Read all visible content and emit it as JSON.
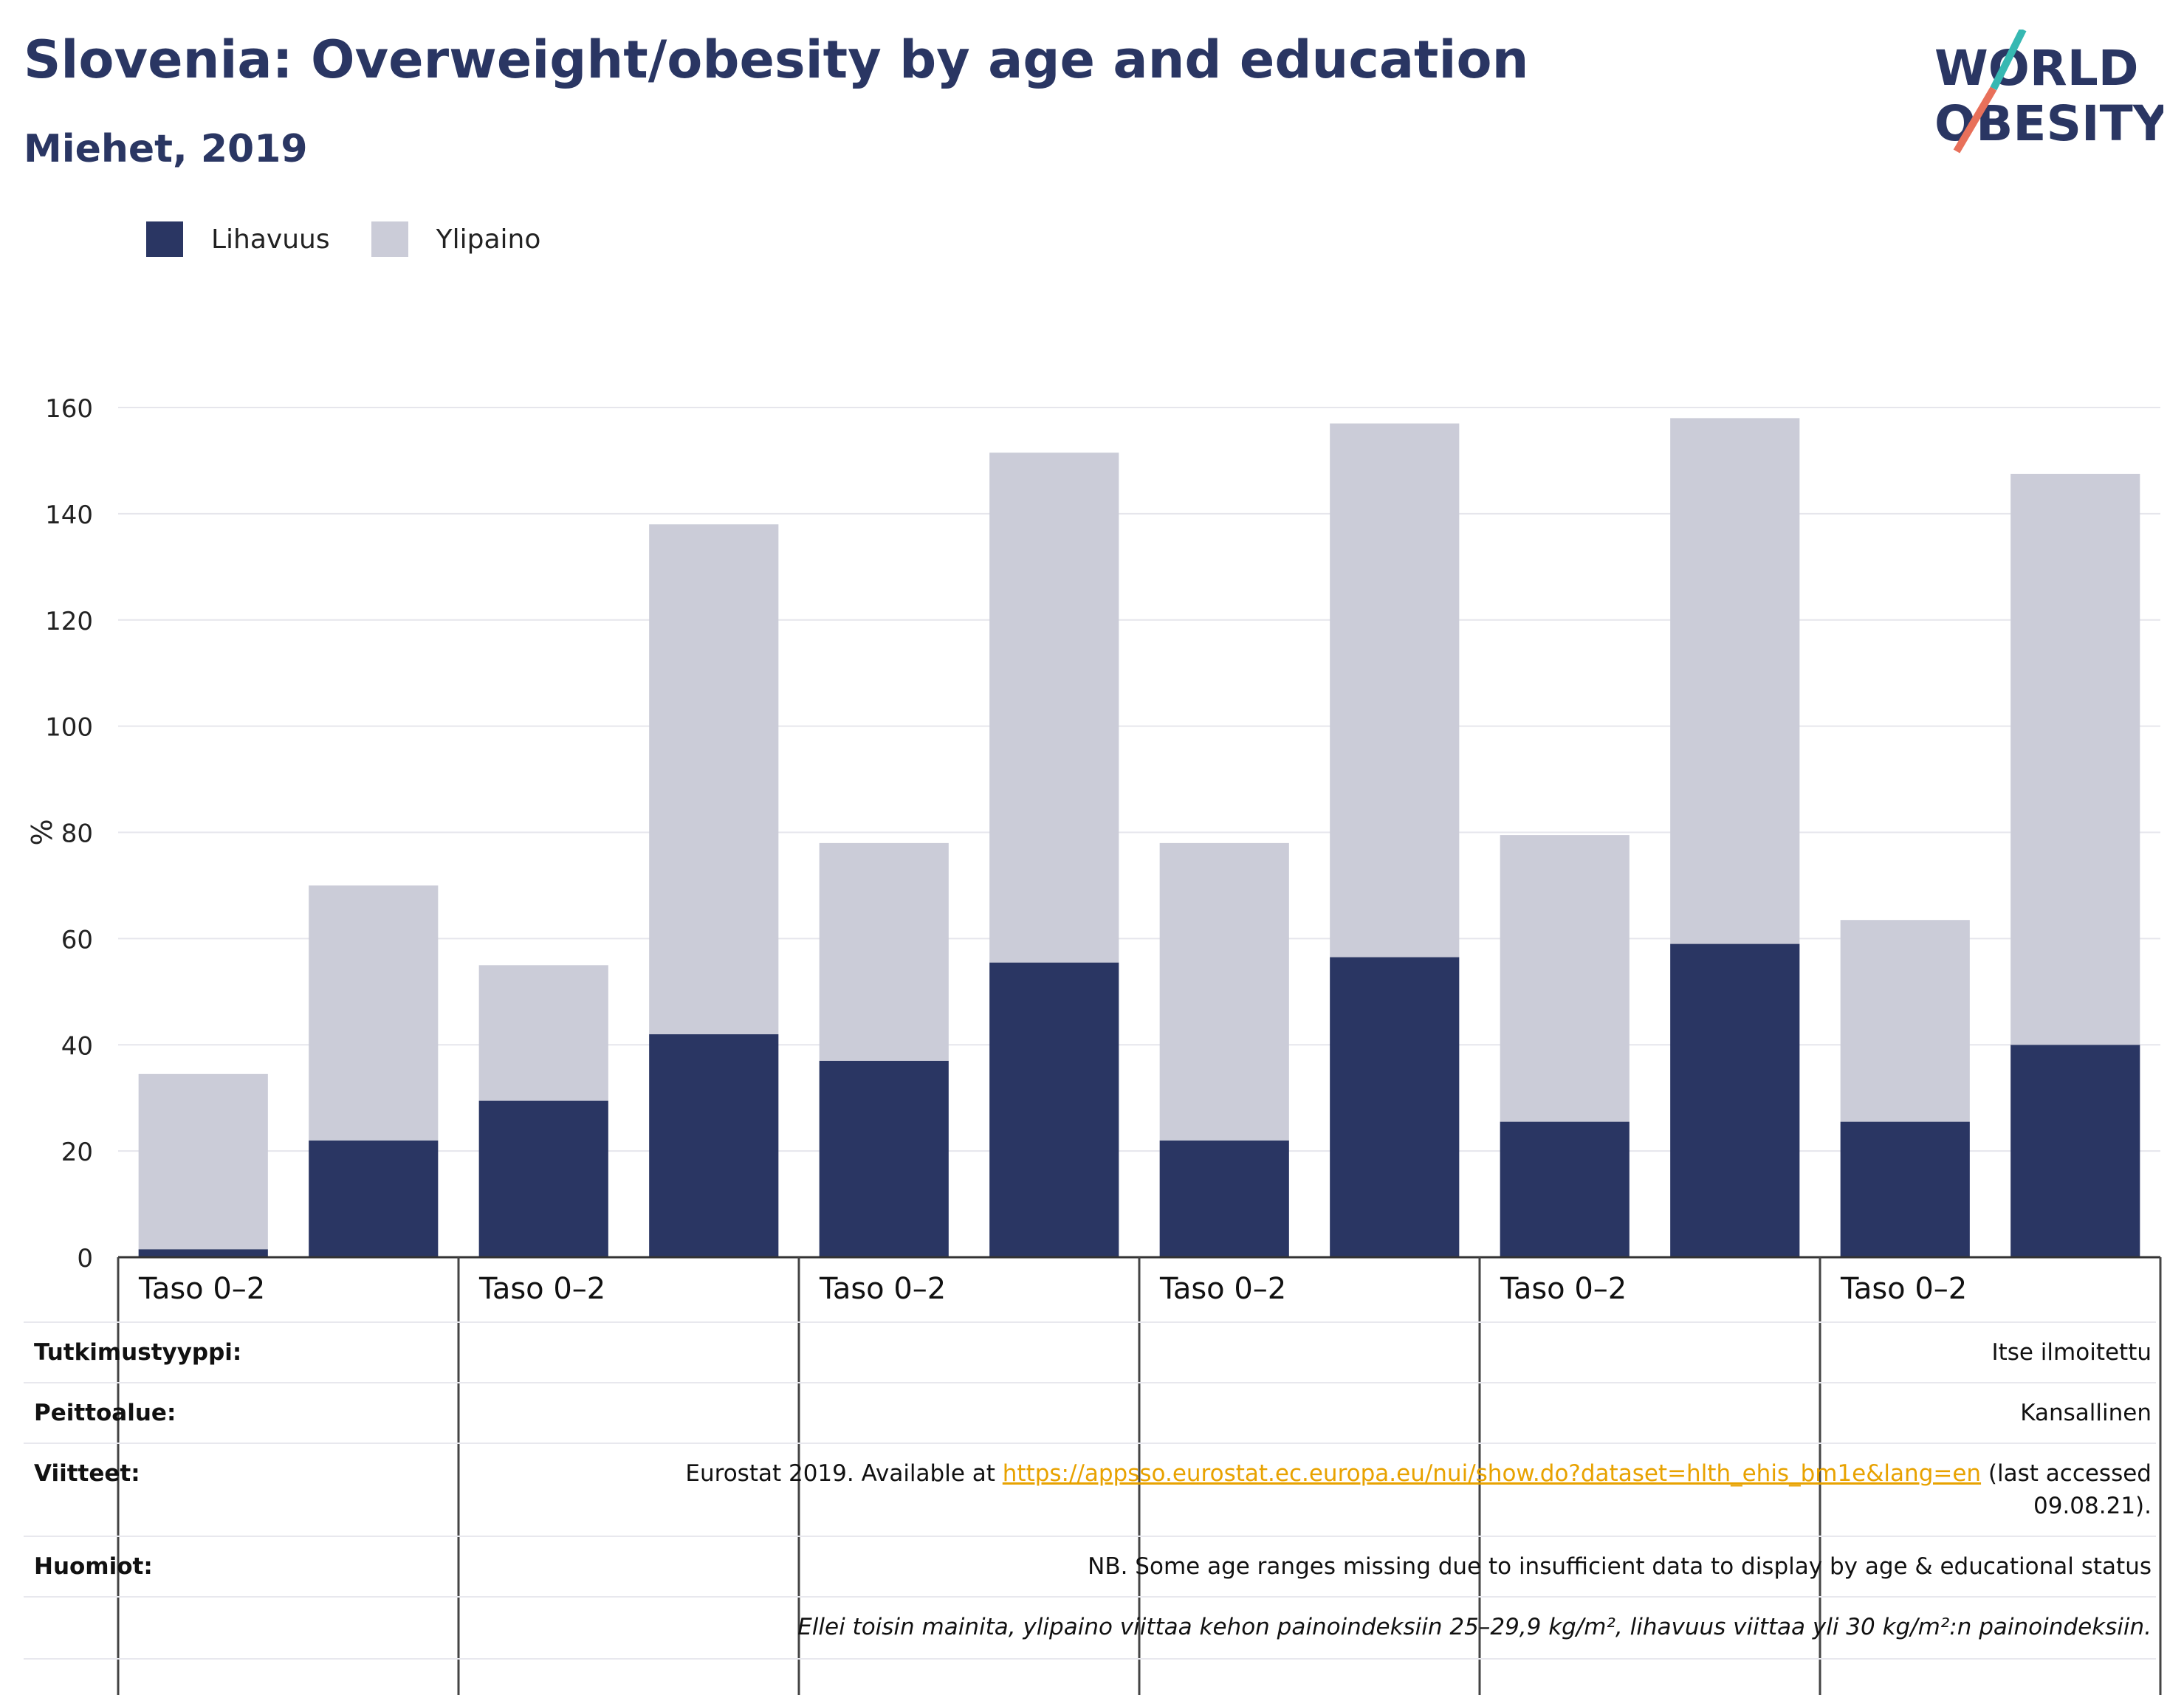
{
  "header": {
    "title": "Slovenia: Overweight/obesity by age and education",
    "subtitle": "Miehet, 2019"
  },
  "logo": {
    "line1": "WORLD",
    "line2": "OBESITY",
    "accent_teal": "#36b8b2",
    "accent_orange": "#e8705a",
    "text_color": "#2a3663"
  },
  "legend": {
    "items": [
      {
        "label": "Lihavuus",
        "color": "#2a3663"
      },
      {
        "label": "Ylipaino",
        "color": "#cbccd8"
      }
    ]
  },
  "chart_data": {
    "type": "bar",
    "stacked": true,
    "ylabel": "%",
    "ylim": [
      0,
      160
    ],
    "yticks": [
      0,
      20,
      40,
      60,
      80,
      100,
      120,
      140,
      160
    ],
    "grid": true,
    "legend_position": "top-left",
    "group_labels": [
      "Taso 0–2",
      "Taso 0–2",
      "Taso 0–2",
      "Taso 0–2",
      "Taso 0–2",
      "Taso 0–2"
    ],
    "bars_per_group": 2,
    "series": [
      {
        "name": "Lihavuus",
        "color": "#2a3663",
        "values": [
          1.5,
          22,
          29.5,
          42,
          37,
          55.5,
          22,
          56.5,
          25.5,
          59,
          25.5,
          40
        ]
      },
      {
        "name": "Ylipaino",
        "color": "#cbccd8",
        "values": [
          33,
          48,
          25.5,
          96,
          41,
          96,
          56,
          100.5,
          54,
          99,
          38,
          107.5
        ]
      }
    ]
  },
  "meta": {
    "study_type": {
      "label": "Tutkimustyyppi:",
      "value": "Itse ilmoitettu"
    },
    "coverage": {
      "label": "Peittoalue:",
      "value": "Kansallinen"
    },
    "references": {
      "label": "Viitteet:",
      "prefix": "Eurostat 2019. Available at ",
      "link": "https://appsso.eurostat.ec.europa.eu/nui/show.do?dataset=hlth_ehis_bm1e&lang=en",
      "suffix": " (last accessed",
      "line2": "09.08.21)."
    },
    "notes": {
      "label": "Huomiot:",
      "value": "NB. Some age ranges missing due to insufficient data to display by age & educational status"
    },
    "definition": "Ellei toisin mainita, ylipaino viittaa kehon painoindeksiin 25–29,9 kg/m², lihavuus viittaa yli 30 kg/m²:n painoindeksiin."
  }
}
